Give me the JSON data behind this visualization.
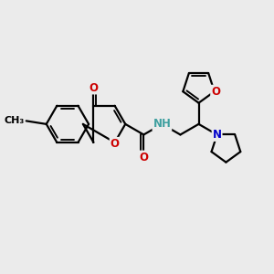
{
  "bg_color": "#ebebeb",
  "bond_color": "#000000",
  "bond_width": 1.6,
  "atom_colors": {
    "O": "#cc0000",
    "N": "#0000cc",
    "NH": "#40a0a0",
    "C": "#000000"
  },
  "font_size": 8.5,
  "fig_size": [
    3.0,
    3.0
  ],
  "dpi": 100
}
